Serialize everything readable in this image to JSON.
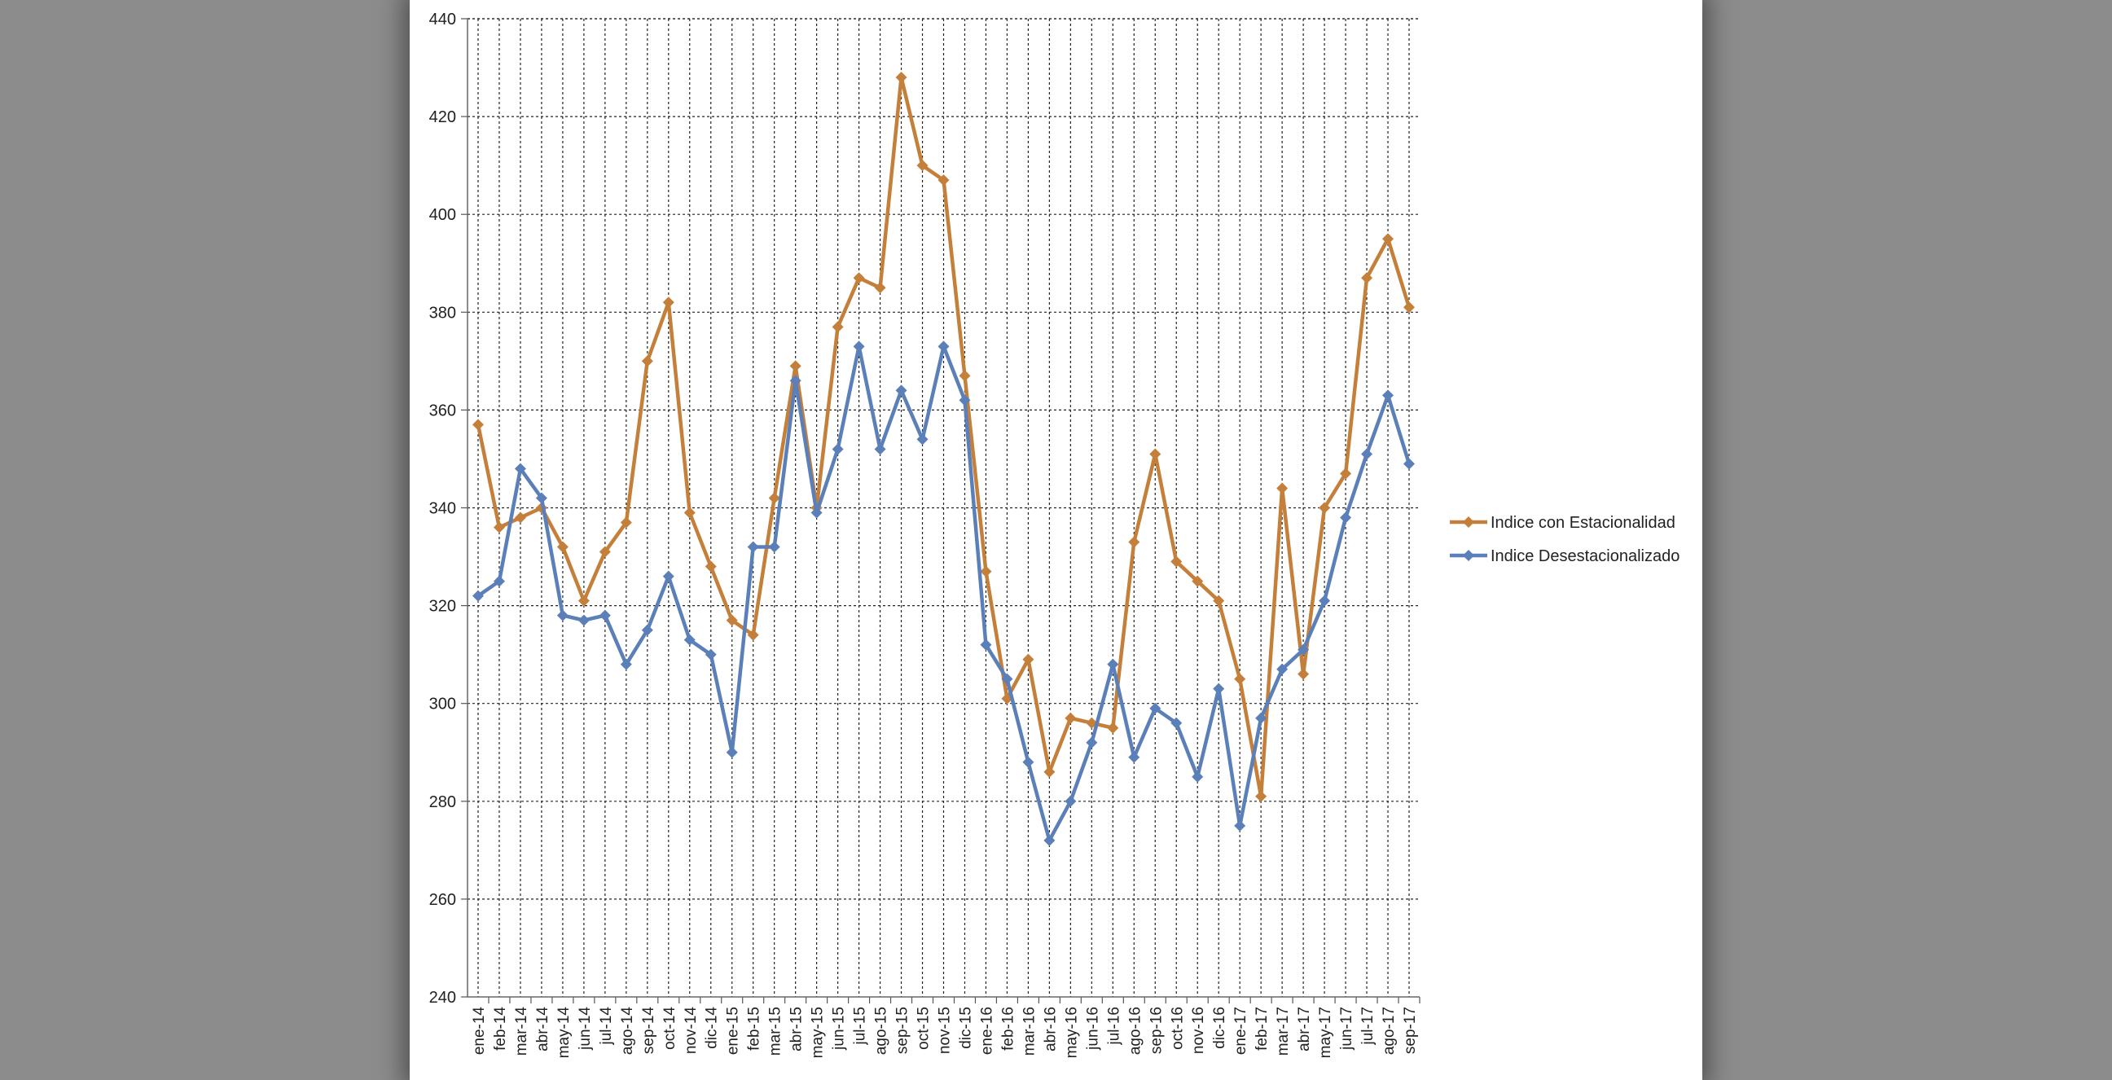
{
  "chart_data": {
    "type": "line",
    "title": "",
    "xlabel": "",
    "ylabel": "",
    "ylim": [
      240,
      440
    ],
    "yticks": [
      240,
      260,
      280,
      300,
      320,
      340,
      360,
      380,
      400,
      420,
      440
    ],
    "grid": true,
    "legend_position": "right",
    "categories": [
      "ene-14",
      "feb-14",
      "mar-14",
      "abr-14",
      "may-14",
      "jun-14",
      "jul-14",
      "ago-14",
      "sep-14",
      "oct-14",
      "nov-14",
      "dic-14",
      "ene-15",
      "feb-15",
      "mar-15",
      "abr-15",
      "may-15",
      "jun-15",
      "jul-15",
      "ago-15",
      "sep-15",
      "oct-15",
      "nov-15",
      "dic-15",
      "ene-16",
      "feb-16",
      "mar-16",
      "abr-16",
      "may-16",
      "jun-16",
      "jul-16",
      "ago-16",
      "sep-16",
      "oct-16",
      "nov-16",
      "dic-16",
      "ene-17",
      "feb-17",
      "mar-17",
      "abr-17",
      "may-17",
      "jun-17",
      "jul-17",
      "ago-17",
      "sep-17"
    ],
    "series": [
      {
        "name": "Indice con Estacionalidad",
        "color": "#c47f3a",
        "values": [
          357,
          336,
          338,
          340,
          332,
          321,
          331,
          337,
          370,
          382,
          339,
          328,
          317,
          314,
          342,
          369,
          340,
          377,
          387,
          385,
          428,
          410,
          407,
          367,
          327,
          301,
          309,
          286,
          297,
          296,
          295,
          333,
          351,
          329,
          325,
          321,
          305,
          281,
          344,
          306,
          340,
          347,
          387,
          395,
          381
        ]
      },
      {
        "name": "Indice Desestacionalizado",
        "color": "#5b7fb9",
        "values": [
          322,
          325,
          348,
          342,
          318,
          317,
          318,
          308,
          315,
          326,
          313,
          310,
          290,
          332,
          332,
          366,
          339,
          352,
          373,
          352,
          364,
          354,
          373,
          362,
          312,
          305,
          288,
          272,
          280,
          292,
          308,
          289,
          299,
          296,
          285,
          303,
          275,
          297,
          307,
          311,
          321,
          338,
          351,
          363,
          349
        ]
      }
    ]
  }
}
